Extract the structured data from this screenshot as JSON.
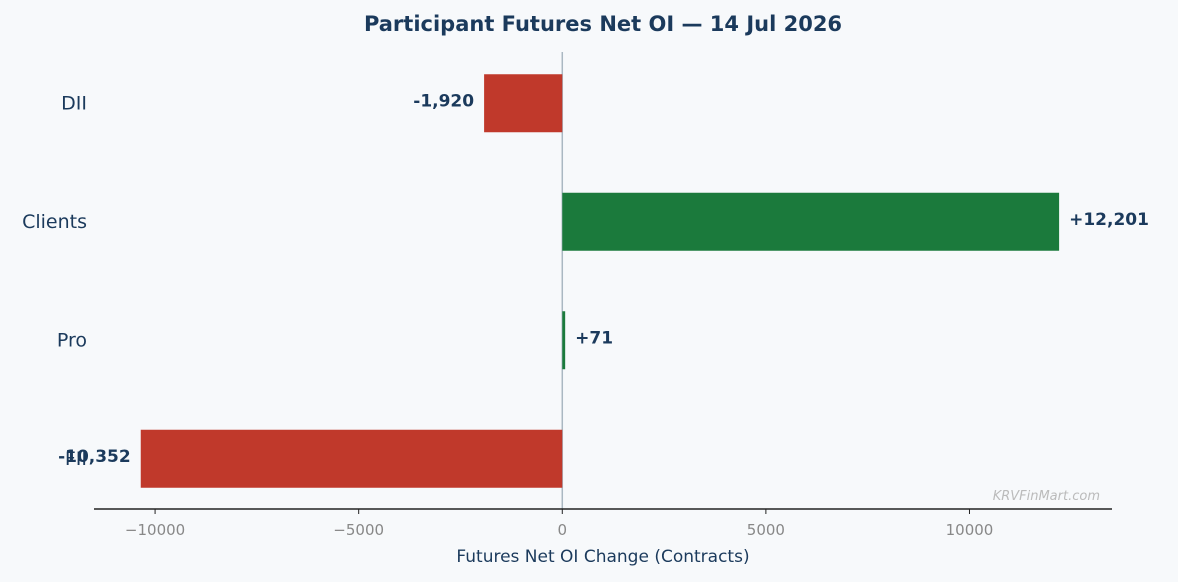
{
  "chart_data": {
    "type": "bar",
    "orientation": "horizontal",
    "title": "Participant Futures Net OI — 14 Jul 2026",
    "xlabel": "Futures Net OI Change (Contracts)",
    "ylabel": "",
    "categories": [
      "DII",
      "Clients",
      "Pro",
      "FII"
    ],
    "values": [
      -1920,
      12201,
      71,
      -10352
    ],
    "value_labels": [
      "-1,920",
      "+12,201",
      "+71",
      "-10,352"
    ],
    "xlim": [
      -11500,
      13500
    ],
    "xticks": [
      -10000,
      -5000,
      0,
      5000,
      10000
    ],
    "xtick_labels": [
      "−10000",
      "−5000",
      "0",
      "5000",
      "10000"
    ],
    "grid": false,
    "legend": "none",
    "colors": {
      "positive": "#1b7a3c",
      "negative": "#c0392b",
      "text": "#1b3a5c",
      "tick_text": "#888888",
      "zero_line": "#aab8c2",
      "axis": "#222222",
      "background": "#f7f9fb",
      "watermark": "#bbbbbb"
    },
    "watermark": "KRVFinMart.com"
  }
}
